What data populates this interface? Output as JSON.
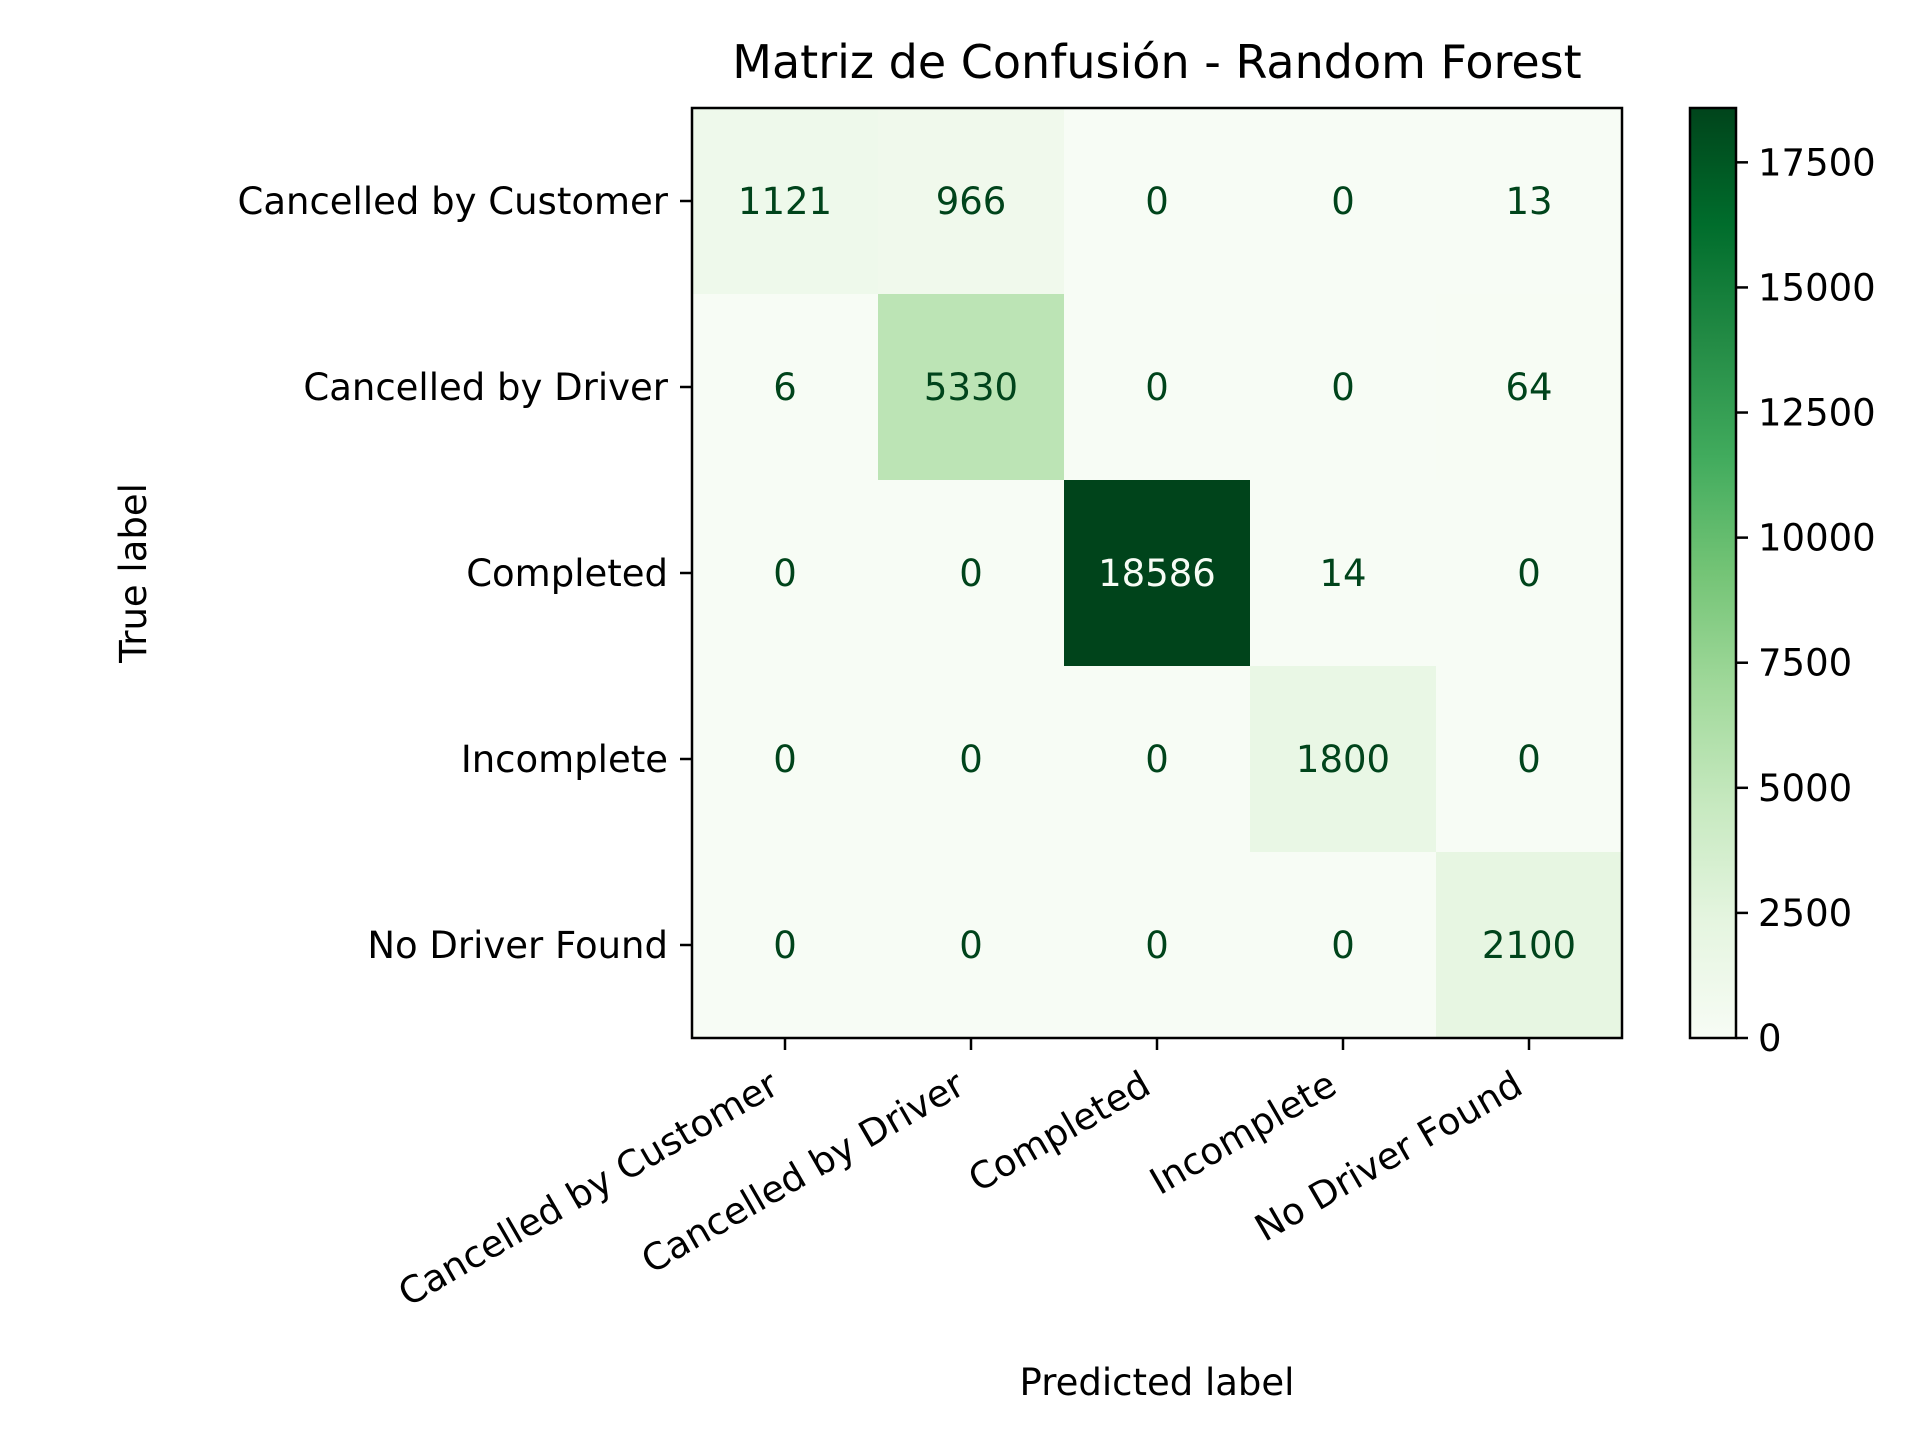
{
  "chart_data": {
    "type": "heatmap",
    "title": "Matriz de Confusión - Random Forest",
    "xlabel": "Predicted label",
    "ylabel": "True label",
    "x_categories": [
      "Cancelled by Customer",
      "Cancelled by Driver",
      "Completed",
      "Incomplete",
      "No Driver Found"
    ],
    "y_categories": [
      "Cancelled by Customer",
      "Cancelled by Driver",
      "Completed",
      "Incomplete",
      "No Driver Found"
    ],
    "matrix": [
      [
        1121,
        966,
        0,
        0,
        13
      ],
      [
        6,
        5330,
        0,
        0,
        64
      ],
      [
        0,
        0,
        18586,
        14,
        0
      ],
      [
        0,
        0,
        0,
        1800,
        0
      ],
      [
        0,
        0,
        0,
        0,
        2100
      ]
    ],
    "colormap": "Greens",
    "color_low": "#f7fcf5",
    "color_high": "#00441b",
    "text_color_dark": "#00441b",
    "text_color_light": "#f7fcf5",
    "colorbar": {
      "range": [
        0,
        18586
      ],
      "ticks": [
        0,
        2500,
        5000,
        7500,
        10000,
        12500,
        15000,
        17500
      ],
      "tick_labels": [
        "0",
        "2500",
        "5000",
        "7500",
        "10000",
        "12500",
        "15000",
        "17500"
      ]
    },
    "grid": false
  }
}
